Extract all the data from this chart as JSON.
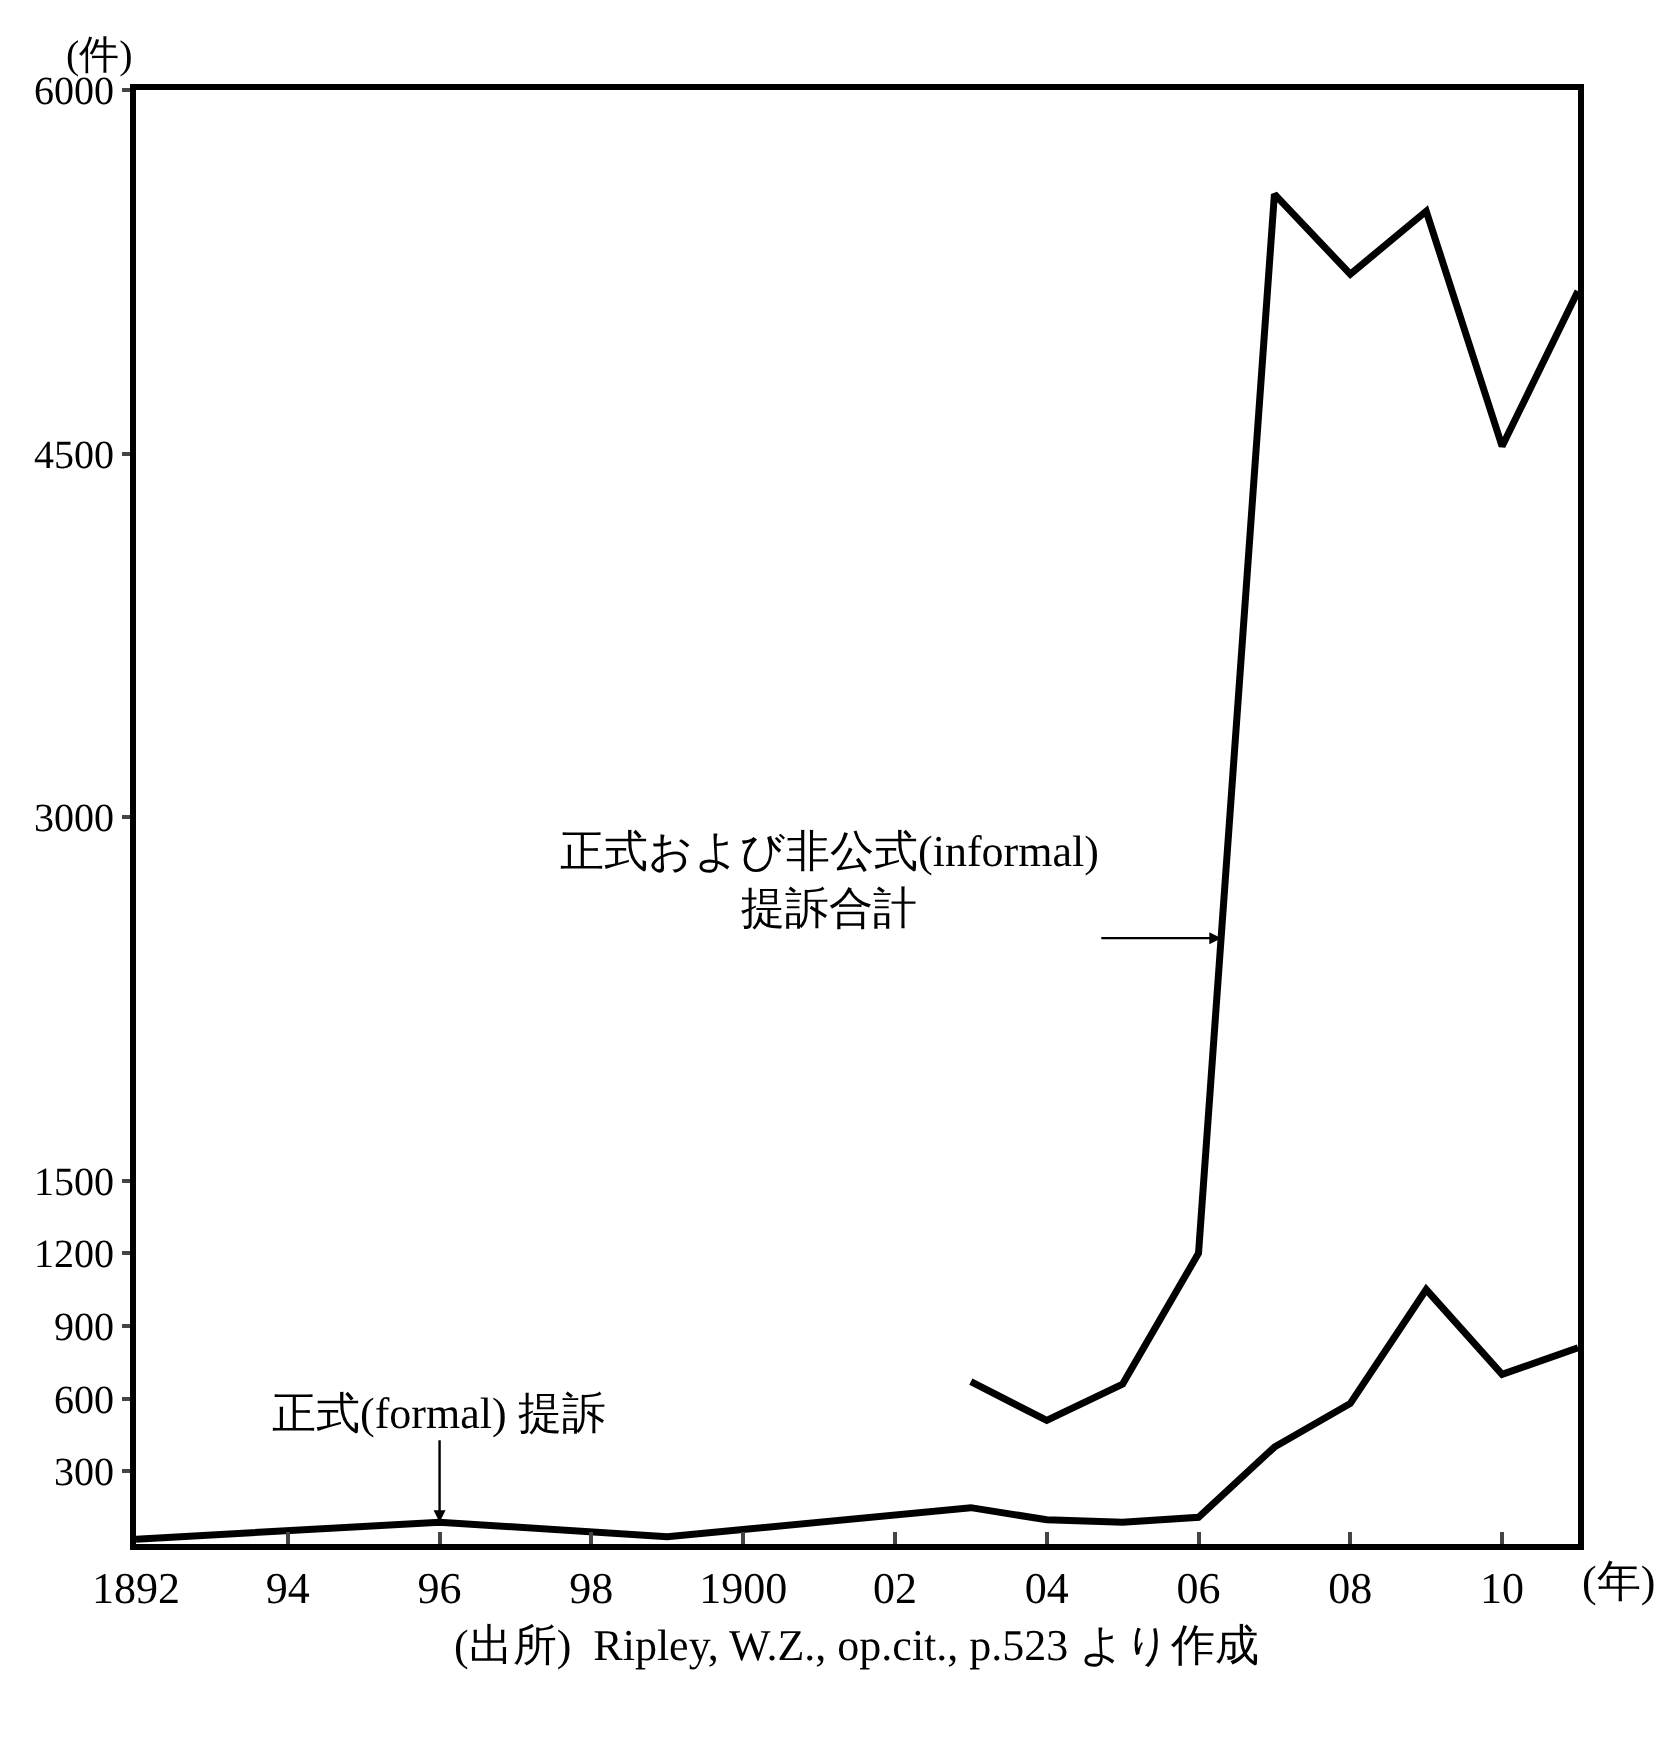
{
  "chart_data": {
    "type": "line",
    "ylabel": "(件)",
    "xlabel": "(年)",
    "series": [
      {
        "color": "#000000",
        "x": [
          1892,
          1896,
          1899,
          1903,
          1904,
          1905,
          1906,
          1907,
          1908,
          1909,
          1910,
          1911
        ],
        "values": [
          20,
          90,
          30,
          150,
          100,
          90,
          110,
          400,
          580,
          1050,
          700,
          810
        ]
      },
      {
        "color": "#000000",
        "x": [
          1903,
          1904,
          1905,
          1906,
          1907,
          1908,
          1909,
          1910,
          1911
        ],
        "values": [
          670,
          510,
          660,
          1200,
          5570,
          5240,
          5500,
          4530,
          5170
        ]
      }
    ],
    "xlim": [
      1892,
      1911
    ],
    "ylim": [
      0,
      6000
    ],
    "xticks": [
      1892,
      {
        "value": 1894,
        "label": "94"
      },
      {
        "value": 1896,
        "label": "96"
      },
      {
        "value": 1898,
        "label": "98"
      },
      1900,
      {
        "value": 1902,
        "label": "02"
      },
      {
        "value": 1904,
        "label": "04"
      },
      {
        "value": 1906,
        "label": "06"
      },
      {
        "value": 1908,
        "label": "08"
      },
      {
        "value": 1910,
        "label": "10"
      }
    ],
    "yticks": [
      300,
      600,
      900,
      1200,
      1500,
      3000,
      4500,
      6000
    ],
    "annotations": [
      {
        "text": "正式(formal) 提訴",
        "x": 1896,
        "y": 90
      },
      {
        "text": "正式および非公式(informal)\n提訴合計",
        "x": 1906.3,
        "y": 2500
      },
      "(出所)  Ripley, W.Z., op.cit., p.523 より作成"
    ],
    "marker": "none",
    "line_style": "solid"
  }
}
